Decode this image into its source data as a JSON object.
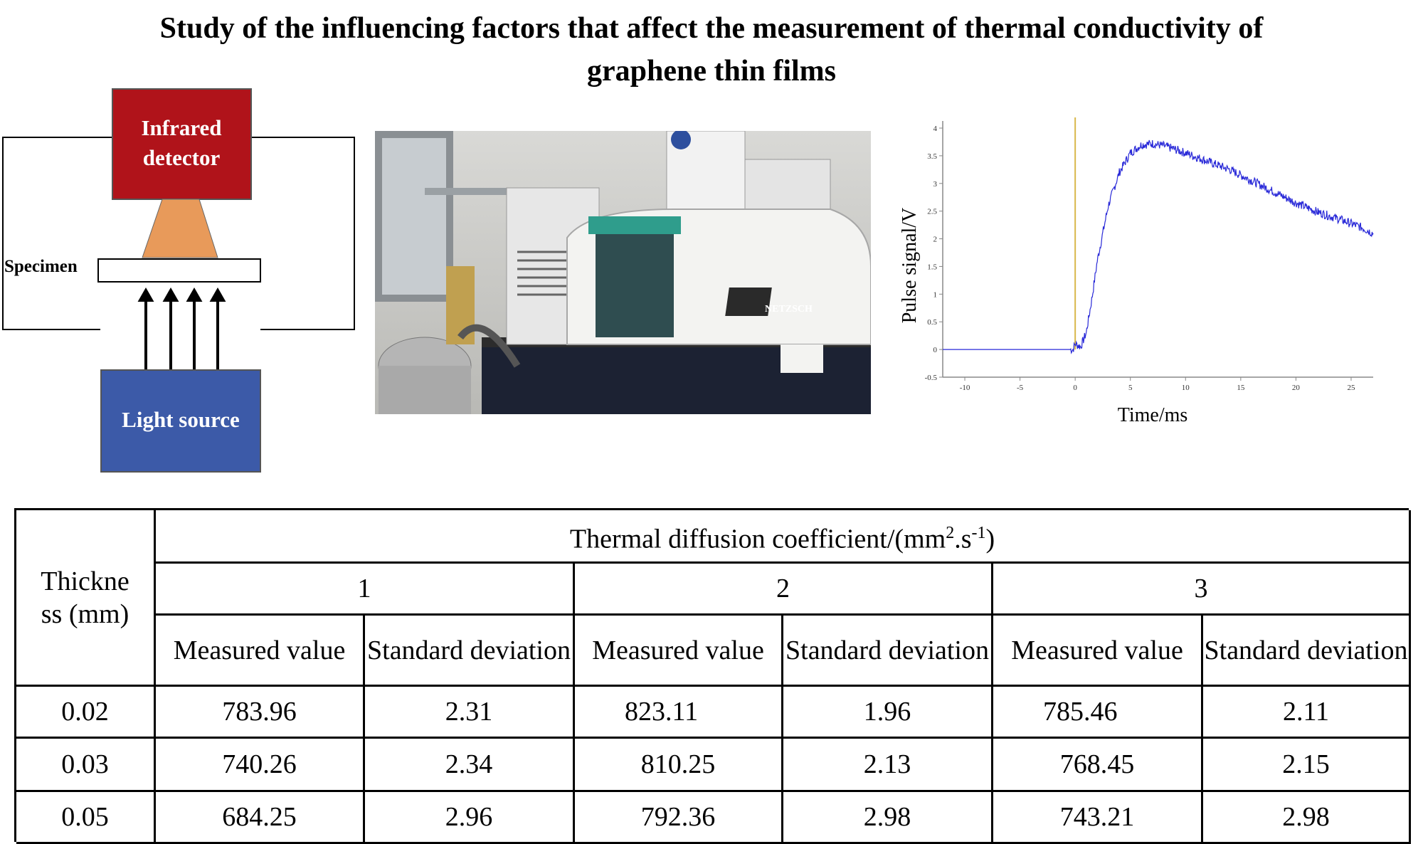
{
  "title": {
    "line1": "Study of the influencing factors that affect the measurement of thermal conductivity of",
    "line2": "graphene thin films"
  },
  "schematic": {
    "detector_line1": "Infrared",
    "detector_line2": "detector",
    "specimen": "Specimen",
    "light_source": "Light source",
    "colors": {
      "detector": "#b0131a",
      "cone": "#e89a5a",
      "source": "#3c5aa8"
    }
  },
  "photo": {
    "brand": "NETZSCH"
  },
  "chart_data": {
    "type": "line",
    "xlabel": "Time/ms",
    "ylabel": "Pulse signal/V",
    "xlim": [
      -12,
      27
    ],
    "ylim": [
      -0.5,
      4
    ],
    "x_ticks": [
      "-10",
      "-5",
      "0",
      "5",
      "10",
      "15",
      "20",
      "25"
    ],
    "y_ticks": [
      "-0.5",
      "0",
      "0.5",
      "1",
      "1.5",
      "2",
      "2.5",
      "3",
      "3.5",
      "4"
    ],
    "series": [
      {
        "color": "#2a2ad8",
        "x": [
          -12,
          -1,
          -0.2,
          0,
          0.5,
          1,
          1.5,
          2,
          3,
          4,
          5,
          6,
          7,
          8,
          9,
          10,
          12,
          14,
          16,
          18,
          20,
          22,
          24,
          26,
          27
        ],
        "y": [
          0,
          0,
          0,
          0.1,
          0.05,
          0.3,
          0.9,
          1.6,
          2.6,
          3.2,
          3.55,
          3.7,
          3.72,
          3.68,
          3.62,
          3.55,
          3.4,
          3.25,
          3.05,
          2.85,
          2.65,
          2.48,
          2.35,
          2.2,
          2.1
        ]
      }
    ],
    "pulse": {
      "x": 0,
      "y_top": 4.2,
      "color": "#d8b84a"
    }
  },
  "table": {
    "thickness_header": "Thickne ss (mm)",
    "top_header": "Thermal diffusion coefficient/(mm",
    "top_header_sup1": "2",
    "top_header_mid": ".s",
    "top_header_sup2": "-1",
    "top_header_end": ")",
    "groups": [
      "1",
      "2",
      "3"
    ],
    "sub_headers": [
      "Measured value",
      "Standard deviation",
      "Measured value",
      "Standard deviation",
      "Measured value",
      "Standard deviation"
    ],
    "rows": [
      {
        "thickness": "0.02",
        "values": [
          "783.96",
          "2.31",
          "823.11",
          "1.96",
          "785.46",
          "2.11"
        ]
      },
      {
        "thickness": "0.03",
        "values": [
          "740.26",
          "2.34",
          "810.25",
          "2.13",
          "768.45",
          "2.15"
        ]
      },
      {
        "thickness": "0.05",
        "values": [
          "684.25",
          "2.96",
          "792.36",
          "2.98",
          "743.21",
          "2.98"
        ]
      }
    ]
  }
}
